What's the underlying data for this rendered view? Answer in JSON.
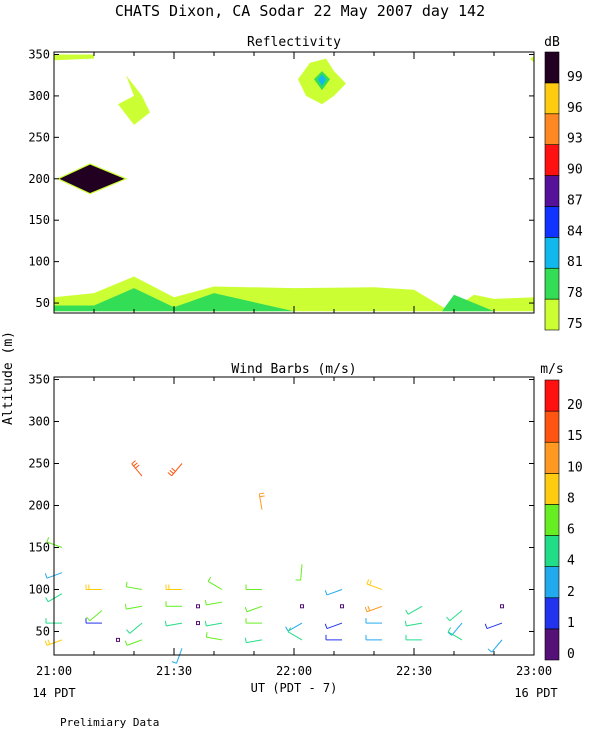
{
  "page": {
    "title": "CHATS Dixon, CA  Sodar  22 May 2007  day 142",
    "ylabel": "Altitude (m)",
    "xlabel": "UT  (PDT - 7)",
    "left_note": "14 PDT",
    "right_note": "16 PDT",
    "footer": "Prelimiary Data"
  },
  "chart_data": [
    {
      "type": "heatmap",
      "title": "Reflectivity",
      "xlabel": "UT  (PDT - 7)",
      "ylabel": "Altitude (m)",
      "x_ticks": [
        "21:00",
        "21:30",
        "22:00",
        "22:30",
        "23:00"
      ],
      "x_range_minutes": [
        0,
        120
      ],
      "ylim": [
        30,
        355
      ],
      "y_ticks": [
        50,
        100,
        150,
        200,
        250,
        300,
        350
      ],
      "colorbar": {
        "unit": "dB",
        "labels": [
          "75",
          "78",
          "81",
          "84",
          "87",
          "90",
          "93",
          "96",
          "99"
        ],
        "colors": [
          "#ccff33",
          "#33dd55",
          "#11b8ee",
          "#1133ff",
          "#551199",
          "#ff1111",
          "#ff8822",
          "#ffcc11",
          "#220022"
        ]
      },
      "regions": [
        {
          "level": "75",
          "outline": [
            [
              0,
              40
            ],
            [
              0,
              57
            ],
            [
              10,
              62
            ],
            [
              20,
              82
            ],
            [
              30,
              57
            ],
            [
              40,
              70
            ],
            [
              60,
              68
            ],
            [
              80,
              69
            ],
            [
              90,
              66
            ],
            [
              99,
              40
            ],
            [
              105,
              60
            ],
            [
              110,
              55
            ],
            [
              120,
              57
            ],
            [
              120,
              40
            ]
          ]
        },
        {
          "level": "78",
          "outline": [
            [
              0,
              40
            ],
            [
              0,
              47
            ],
            [
              10,
              47
            ],
            [
              20,
              68
            ],
            [
              30,
              45
            ],
            [
              40,
              62
            ],
            [
              60,
              40
            ]
          ]
        },
        {
          "level": "78",
          "outline": [
            [
              97,
              40
            ],
            [
              100,
              60
            ],
            [
              110,
              40
            ]
          ]
        },
        {
          "level": "75",
          "outline": [
            [
              0,
              343
            ],
            [
              0,
              350
            ],
            [
              10,
              350
            ],
            [
              10,
              345
            ]
          ]
        },
        {
          "level": "75",
          "outline": [
            [
              18,
              325
            ],
            [
              20,
              300
            ],
            [
              16,
              290
            ],
            [
              20,
              265
            ],
            [
              24,
              280
            ],
            [
              22,
              300
            ]
          ]
        },
        {
          "level": "75",
          "outline": [
            [
              64,
              340
            ],
            [
              68,
              345
            ],
            [
              70,
              330
            ],
            [
              73,
              315
            ],
            [
              70,
              300
            ],
            [
              67,
              290
            ],
            [
              63,
              300
            ],
            [
              61,
              320
            ]
          ]
        },
        {
          "level": "78",
          "outline": [
            [
              67,
              330
            ],
            [
              69,
              320
            ],
            [
              67,
              307
            ],
            [
              65,
              320
            ]
          ]
        },
        {
          "level": "81",
          "outline": [
            [
              67,
              326
            ],
            [
              68,
              320
            ],
            [
              67,
              312
            ],
            [
              66,
              320
            ]
          ]
        },
        {
          "level": "99",
          "outline": [
            [
              1,
              200
            ],
            [
              9,
              218
            ],
            [
              18,
              200
            ],
            [
              9,
              182
            ]
          ]
        },
        {
          "level": "75",
          "outline": [
            [
              119,
              345
            ],
            [
              120,
              348
            ],
            [
              120,
              340
            ]
          ]
        }
      ]
    },
    {
      "type": "scatter",
      "title": "Wind Barbs (m/s)",
      "xlabel": "UT  (PDT - 7)",
      "ylabel": "Altitude (m)",
      "x_ticks": [
        "21:00",
        "21:30",
        "22:00",
        "22:30",
        "23:00"
      ],
      "x_range_minutes": [
        0,
        120
      ],
      "ylim": [
        20,
        355
      ],
      "y_ticks": [
        50,
        100,
        150,
        200,
        250,
        300,
        350
      ],
      "colorbar": {
        "unit": "m/s",
        "labels": [
          "0",
          "1",
          "2",
          "4",
          "6",
          "8",
          "10",
          "15",
          "20"
        ],
        "colors": [
          "#551177",
          "#2233ee",
          "#22aaee",
          "#22dd88",
          "#66ee22",
          "#ffcc11",
          "#ff9922",
          "#ff5511",
          "#ff1111"
        ]
      },
      "barbs": [
        {
          "t": 2,
          "alt": 150,
          "speed": 6,
          "dir": 290
        },
        {
          "t": 2,
          "alt": 120,
          "speed": 2,
          "dir": 250
        },
        {
          "t": 2,
          "alt": 95,
          "speed": 5,
          "dir": 240
        },
        {
          "t": 2,
          "alt": 60,
          "speed": 4,
          "dir": 270
        },
        {
          "t": 2,
          "alt": 40,
          "speed": 8,
          "dir": 250
        },
        {
          "t": 12,
          "alt": 100,
          "speed": 8,
          "dir": 270
        },
        {
          "t": 12,
          "alt": 75,
          "speed": 6,
          "dir": 230
        },
        {
          "t": 12,
          "alt": 60,
          "speed": 1,
          "dir": 270
        },
        {
          "t": 16,
          "alt": 40,
          "speed": 0,
          "dir": 0
        },
        {
          "t": 22,
          "alt": 235,
          "speed": 18,
          "dir": 320
        },
        {
          "t": 22,
          "alt": 100,
          "speed": 6,
          "dir": 280
        },
        {
          "t": 22,
          "alt": 80,
          "speed": 6,
          "dir": 260
        },
        {
          "t": 22,
          "alt": 60,
          "speed": 5,
          "dir": 230
        },
        {
          "t": 22,
          "alt": 40,
          "speed": 6,
          "dir": 250
        },
        {
          "t": 32,
          "alt": 250,
          "speed": 18,
          "dir": 220
        },
        {
          "t": 32,
          "alt": 100,
          "speed": 8,
          "dir": 270
        },
        {
          "t": 32,
          "alt": 80,
          "speed": 6,
          "dir": 270
        },
        {
          "t": 32,
          "alt": 60,
          "speed": 4,
          "dir": 260
        },
        {
          "t": 32,
          "alt": 30,
          "speed": 3,
          "dir": 200
        },
        {
          "t": 36,
          "alt": 80,
          "speed": 0,
          "dir": 0
        },
        {
          "t": 36,
          "alt": 60,
          "speed": 0,
          "dir": 0
        },
        {
          "t": 42,
          "alt": 100,
          "speed": 6,
          "dir": 300
        },
        {
          "t": 42,
          "alt": 85,
          "speed": 6,
          "dir": 260
        },
        {
          "t": 42,
          "alt": 60,
          "speed": 5,
          "dir": 260
        },
        {
          "t": 42,
          "alt": 40,
          "speed": 6,
          "dir": 280
        },
        {
          "t": 52,
          "alt": 195,
          "speed": 10,
          "dir": 350
        },
        {
          "t": 52,
          "alt": 100,
          "speed": 6,
          "dir": 270
        },
        {
          "t": 52,
          "alt": 80,
          "speed": 6,
          "dir": 250
        },
        {
          "t": 52,
          "alt": 60,
          "speed": 6,
          "dir": 270
        },
        {
          "t": 52,
          "alt": 40,
          "speed": 4,
          "dir": 260
        },
        {
          "t": 62,
          "alt": 130,
          "speed": 6,
          "dir": 185
        },
        {
          "t": 62,
          "alt": 80,
          "speed": 0,
          "dir": 0
        },
        {
          "t": 62,
          "alt": 60,
          "speed": 2,
          "dir": 240
        },
        {
          "t": 62,
          "alt": 40,
          "speed": 5,
          "dir": 300
        },
        {
          "t": 72,
          "alt": 100,
          "speed": 3,
          "dir": 250
        },
        {
          "t": 72,
          "alt": 80,
          "speed": 0,
          "dir": 0
        },
        {
          "t": 72,
          "alt": 60,
          "speed": 1,
          "dir": 250
        },
        {
          "t": 72,
          "alt": 40,
          "speed": 1,
          "dir": 270
        },
        {
          "t": 82,
          "alt": 100,
          "speed": 8,
          "dir": 290
        },
        {
          "t": 82,
          "alt": 80,
          "speed": 10,
          "dir": 250
        },
        {
          "t": 82,
          "alt": 60,
          "speed": 2,
          "dir": 270
        },
        {
          "t": 82,
          "alt": 40,
          "speed": 2,
          "dir": 270
        },
        {
          "t": 92,
          "alt": 80,
          "speed": 5,
          "dir": 240
        },
        {
          "t": 92,
          "alt": 60,
          "speed": 5,
          "dir": 260
        },
        {
          "t": 92,
          "alt": 40,
          "speed": 5,
          "dir": 270
        },
        {
          "t": 102,
          "alt": 75,
          "speed": 5,
          "dir": 230
        },
        {
          "t": 102,
          "alt": 60,
          "speed": 2,
          "dir": 220
        },
        {
          "t": 102,
          "alt": 40,
          "speed": 4,
          "dir": 300
        },
        {
          "t": 112,
          "alt": 80,
          "speed": 0,
          "dir": 0
        },
        {
          "t": 112,
          "alt": 60,
          "speed": 1,
          "dir": 250
        },
        {
          "t": 112,
          "alt": 40,
          "speed": 2,
          "dir": 220
        }
      ]
    }
  ]
}
